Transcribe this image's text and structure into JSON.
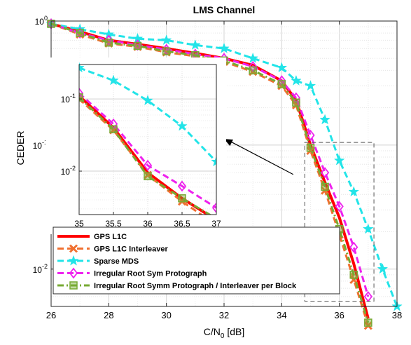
{
  "chart_data": {
    "type": "line",
    "title": "LMS Channel",
    "xlabel_main": "C/N",
    "xlabel_sub": "0",
    "xlabel_unit": " [dB]",
    "ylabel": "CEDER",
    "xlim": [
      26,
      38
    ],
    "ylim": [
      0.005,
      1
    ],
    "yscale": "log",
    "grid": true,
    "legend_position": "bottom-left",
    "x_ticks": [
      26,
      28,
      30,
      32,
      34,
      36,
      38
    ],
    "y_tick_labels": [
      {
        "value": 1,
        "base": "10",
        "exp": "0"
      },
      {
        "value": 0.1,
        "base": "10",
        "exp": "-1"
      },
      {
        "value": 0.01,
        "base": "10",
        "exp": "-2"
      }
    ],
    "series": [
      {
        "name": "GPS L1C",
        "color": "#ff0000",
        "marker": "none",
        "dash": "solid",
        "x": [
          26,
          27,
          28,
          29,
          30,
          31,
          32,
          33,
          34,
          34.5,
          35,
          35.5,
          36,
          36.5,
          37
        ],
        "y": [
          0.95,
          0.82,
          0.7,
          0.65,
          0.6,
          0.55,
          0.5,
          0.44,
          0.33,
          0.23,
          0.1,
          0.05,
          0.026,
          0.011,
          0.004
        ]
      },
      {
        "name": "GPS L1C Interleaver",
        "color": "#f07030",
        "marker": "x",
        "dash": "dash",
        "x": [
          26,
          27,
          28,
          29,
          30,
          31,
          32,
          33,
          34,
          34.5,
          35,
          35.5,
          36,
          36.5,
          37
        ],
        "y": [
          0.95,
          0.78,
          0.66,
          0.62,
          0.56,
          0.52,
          0.47,
          0.39,
          0.3,
          0.21,
          0.09,
          0.043,
          0.019,
          0.0082,
          0.0035
        ]
      },
      {
        "name": "Sparse MDS",
        "color": "#22e4e8",
        "marker": "star",
        "dash": "dash",
        "x": [
          26,
          27,
          28,
          29,
          30,
          31,
          32,
          33,
          34,
          34.5,
          35,
          35.5,
          36,
          36.5,
          37,
          37.5,
          38
        ],
        "y": [
          0.95,
          0.86,
          0.78,
          0.72,
          0.7,
          0.64,
          0.6,
          0.5,
          0.42,
          0.33,
          0.3,
          0.16,
          0.075,
          0.042,
          0.021,
          0.01,
          0.005
        ]
      },
      {
        "name": "Irregular Root Sym Protograph",
        "color": "#ee22ee",
        "marker": "diamond",
        "dash": "dash",
        "x": [
          26,
          27,
          28,
          29,
          30,
          31,
          32,
          33,
          34,
          34.5,
          35,
          35.5,
          36,
          36.5,
          37
        ],
        "y": [
          0.95,
          0.8,
          0.7,
          0.64,
          0.59,
          0.54,
          0.5,
          0.43,
          0.33,
          0.24,
          0.12,
          0.06,
          0.032,
          0.015,
          0.006
        ]
      },
      {
        "name": "Irregular Root Symm Protograph / Interleaver per Block",
        "color": "#77aa33",
        "marker": "square",
        "dash": "dashdot",
        "x": [
          26,
          27,
          28,
          29,
          30,
          31,
          32,
          33,
          34,
          34.5,
          35,
          35.5,
          36,
          36.5,
          37
        ],
        "y": [
          0.95,
          0.8,
          0.67,
          0.63,
          0.57,
          0.53,
          0.48,
          0.4,
          0.31,
          0.22,
          0.095,
          0.046,
          0.021,
          0.009,
          0.0037
        ]
      }
    ],
    "inset": {
      "xlim": [
        35,
        37
      ],
      "ylim": [
        0.0025,
        0.3
      ],
      "yscale": "log",
      "x_ticks": [
        35,
        35.5,
        36,
        36.5,
        37
      ],
      "y_tick_labels": [
        {
          "value": 0.1,
          "base": "10",
          "exp": "-1"
        },
        {
          "value": 0.01,
          "base": "10",
          "exp": "-2"
        }
      ],
      "series": [
        {
          "x": [
            35,
            35.5,
            36,
            36.5,
            37
          ],
          "y": [
            0.11,
            0.04,
            0.0095,
            0.0042,
            0.0021
          ]
        },
        {
          "x": [
            35,
            35.5,
            36,
            36.5,
            37
          ],
          "y": [
            0.1,
            0.037,
            0.0088,
            0.0038,
            0.0018
          ]
        },
        {
          "x": [
            35,
            35.5,
            36,
            36.5,
            37
          ],
          "y": [
            0.27,
            0.18,
            0.095,
            0.042,
            0.0135
          ]
        },
        {
          "x": [
            35,
            35.5,
            36,
            36.5,
            37
          ],
          "y": [
            0.12,
            0.045,
            0.012,
            0.0062,
            0.0031
          ]
        },
        {
          "x": [
            35,
            35.5,
            36,
            36.5,
            37
          ],
          "y": [
            0.105,
            0.038,
            0.0085,
            0.0042,
            0.0022
          ]
        }
      ]
    }
  }
}
